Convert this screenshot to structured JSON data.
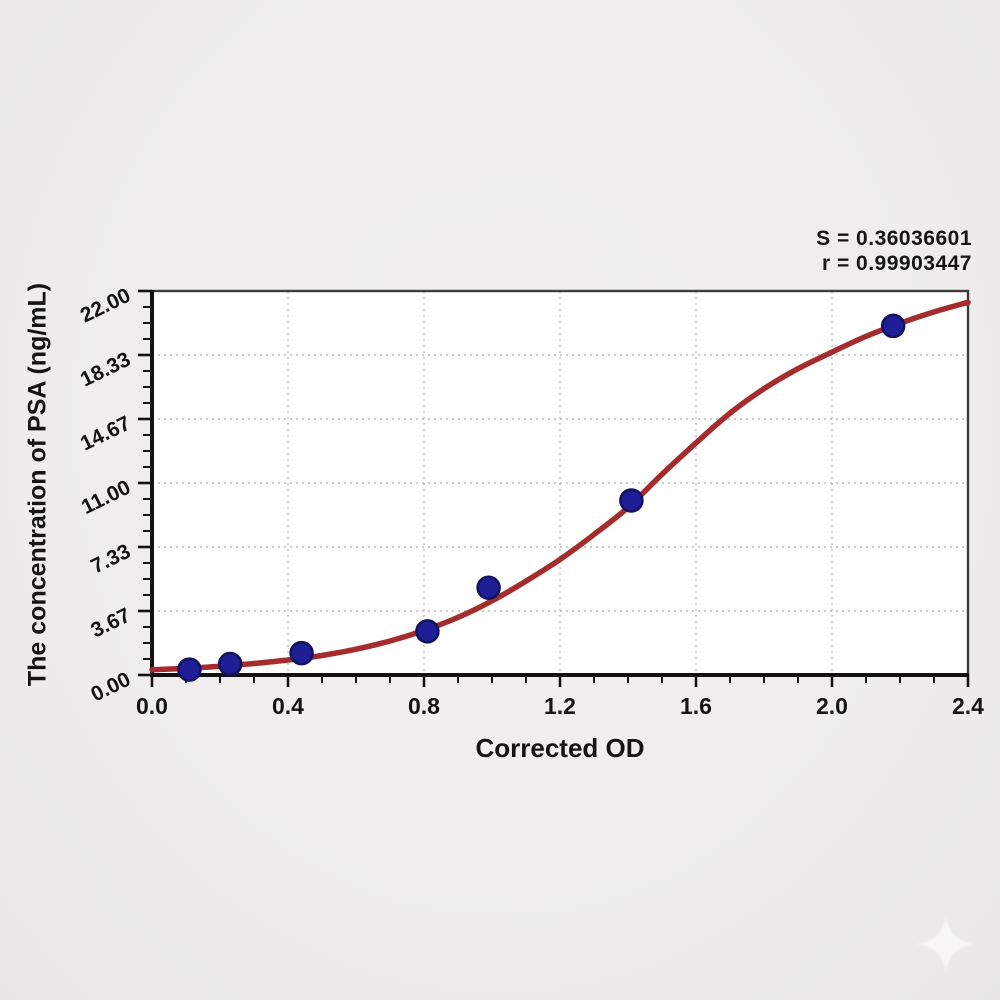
{
  "page": {
    "background": "#efeeed"
  },
  "chart_data": {
    "type": "scatter",
    "title": "",
    "xlabel": "Corrected OD",
    "ylabel": "The concentration of PSA (ng/mL)",
    "xlim": [
      0.0,
      2.4
    ],
    "ylim": [
      0.0,
      22.0
    ],
    "grid": true,
    "legend": "none",
    "x_ticks": [
      {
        "value": 0.0,
        "label": "0.0"
      },
      {
        "value": 0.4,
        "label": "0.4"
      },
      {
        "value": 0.8,
        "label": "0.8"
      },
      {
        "value": 1.2,
        "label": "1.2"
      },
      {
        "value": 1.6,
        "label": "1.6"
      },
      {
        "value": 2.0,
        "label": "2.0"
      },
      {
        "value": 2.4,
        "label": "2.4"
      }
    ],
    "y_ticks": [
      {
        "value": 0.0,
        "label": "0.00"
      },
      {
        "value": 3.667,
        "label": "3.67"
      },
      {
        "value": 7.333,
        "label": "7.33"
      },
      {
        "value": 11.0,
        "label": "11.00"
      },
      {
        "value": 14.667,
        "label": "14.67"
      },
      {
        "value": 18.333,
        "label": "18.33"
      },
      {
        "value": 22.0,
        "label": "22.00"
      }
    ],
    "x_minor_per_major": 3,
    "y_minor_per_major": 3,
    "points": [
      {
        "x": 0.11,
        "y": 0.31
      },
      {
        "x": 0.23,
        "y": 0.63
      },
      {
        "x": 0.44,
        "y": 1.25
      },
      {
        "x": 0.81,
        "y": 2.5
      },
      {
        "x": 0.99,
        "y": 5.0
      },
      {
        "x": 1.41,
        "y": 10.0
      },
      {
        "x": 2.18,
        "y": 20.0
      }
    ],
    "curve": [
      [
        0.0,
        0.3
      ],
      [
        0.1,
        0.38
      ],
      [
        0.2,
        0.5
      ],
      [
        0.3,
        0.66
      ],
      [
        0.4,
        0.86
      ],
      [
        0.5,
        1.12
      ],
      [
        0.6,
        1.48
      ],
      [
        0.7,
        1.95
      ],
      [
        0.8,
        2.55
      ],
      [
        0.9,
        3.3
      ],
      [
        1.0,
        4.25
      ],
      [
        1.1,
        5.38
      ],
      [
        1.2,
        6.62
      ],
      [
        1.3,
        8.05
      ],
      [
        1.4,
        9.6
      ],
      [
        1.5,
        11.5
      ],
      [
        1.6,
        13.3
      ],
      [
        1.7,
        15.0
      ],
      [
        1.8,
        16.4
      ],
      [
        1.9,
        17.55
      ],
      [
        2.0,
        18.5
      ],
      [
        2.1,
        19.4
      ],
      [
        2.2,
        20.15
      ],
      [
        2.3,
        20.8
      ],
      [
        2.4,
        21.35
      ]
    ],
    "annotations": {
      "s_line": "S = 0.36036601",
      "r_line": "r = 0.99903447"
    },
    "fit_stats": {
      "S": "0.36036601",
      "r": "0.99903447"
    },
    "colors": {
      "curve": "#a42c2c",
      "point_fill": "#1e1e96",
      "point_stroke": "#12125e",
      "grid": "#bcbcbc",
      "axis": "#111111",
      "frame": "#3c3c3c",
      "text": "#141414",
      "plot_bg": "#ffffff"
    }
  },
  "watermark": {
    "icon": "sparkle-icon",
    "color": "#ffffff"
  }
}
